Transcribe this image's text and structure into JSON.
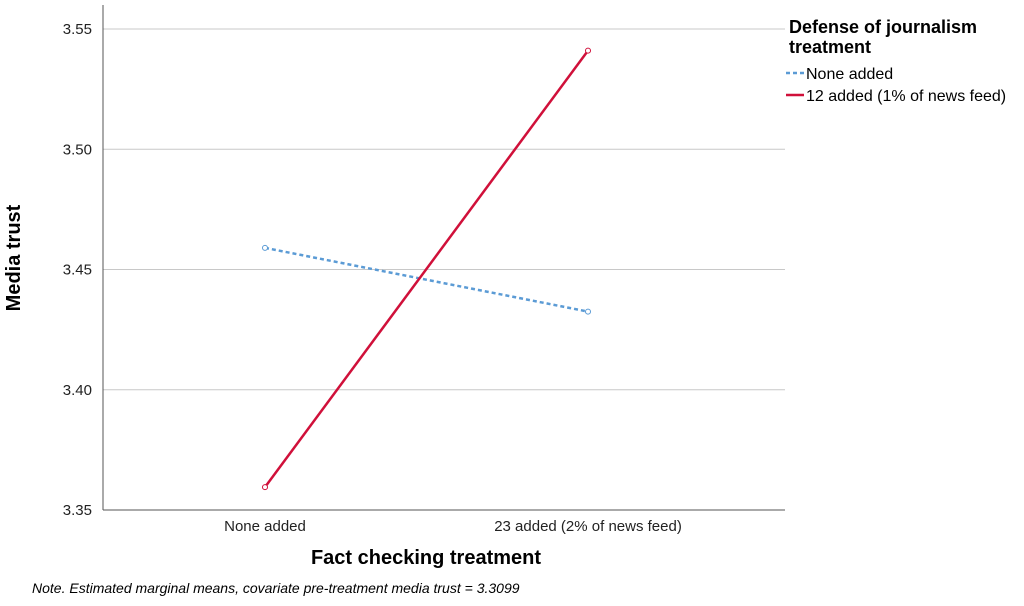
{
  "chart_data": {
    "type": "line",
    "xlabel": "Fact checking treatment",
    "ylabel": "Media trust",
    "categories": [
      "None added",
      "23 added (2% of news feed)"
    ],
    "ylim": [
      3.35,
      3.56
    ],
    "yticks": [
      "3.35",
      "3.40",
      "3.45",
      "3.50",
      "3.55"
    ],
    "grid": true,
    "legend": {
      "title_line1": "Defense of journalism",
      "title_line2": "treatment",
      "placement": "right"
    },
    "series": [
      {
        "name": "None added",
        "values": [
          3.459,
          3.4325
        ],
        "color": "#5b9bd5",
        "style": "dashed"
      },
      {
        "name": "12 added (1% of news feed)",
        "values": [
          3.3595,
          3.541
        ],
        "color": "#d0103a",
        "style": "solid"
      }
    ],
    "note": "Note. Estimated marginal means, covariate pre-treatment media trust = 3.3099"
  }
}
